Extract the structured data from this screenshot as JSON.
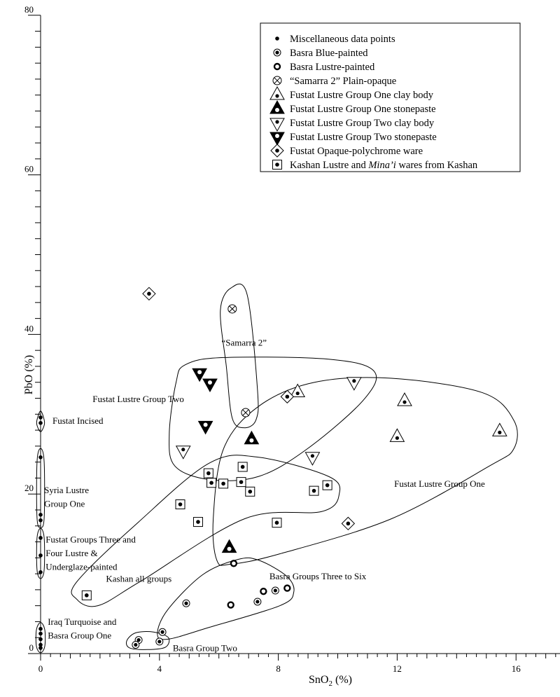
{
  "chart_data": {
    "type": "scatter",
    "title": "",
    "xlabel": "SnO2 (%)",
    "xlabel_main": "SnO",
    "xlabel_sub": "2",
    "xlabel_rest": " (%)",
    "ylabel": "PbO (%)",
    "xlim": [
      0,
      17.5
    ],
    "ylim": [
      0,
      80
    ],
    "x_ticks": [
      0,
      4,
      8,
      12,
      16
    ],
    "x_tick_labels": [
      "0",
      "4",
      "8",
      "12",
      "16"
    ],
    "y_ticks": [
      0,
      20,
      40,
      60,
      80
    ],
    "y_tick_labels": [
      "0",
      "20",
      "40",
      "60",
      "80"
    ],
    "grid": false,
    "legend_placement": "top-right",
    "colors": {
      "ink": "#000000",
      "background": "#ffffff"
    },
    "legend": [
      {
        "marker": "dot",
        "label": "Miscellaneous data points"
      },
      {
        "marker": "dotted-circle",
        "label": "Basra Blue-painted"
      },
      {
        "marker": "bold-open-circle",
        "label": "Basra Lustre-painted"
      },
      {
        "marker": "crossed-circle",
        "label": "“Samarra 2” Plain-opaque"
      },
      {
        "marker": "open-triangle-up",
        "label": "Fustat Lustre Group One clay body"
      },
      {
        "marker": "filled-triangle-up",
        "label": "Fustat Lustre Group One stonepaste"
      },
      {
        "marker": "open-triangle-down",
        "label": "Fustat Lustre Group Two clay body"
      },
      {
        "marker": "filled-triangle-down",
        "label": "Fustat Lustre Group Two stonepaste"
      },
      {
        "marker": "diamond",
        "label": "Fustat Opaque-polychrome ware"
      },
      {
        "marker": "square",
        "label": "Kashan Lustre and Mina’i wares from Kashan",
        "label_parts": [
          "Kashan Lustre and ",
          "Mina’i",
          " wares from Kashan"
        ]
      }
    ],
    "series": [
      {
        "name": "Miscellaneous data points",
        "marker": "dot",
        "points": [
          [
            0,
            29.6
          ],
          [
            0,
            28.9
          ],
          [
            0,
            24.6
          ],
          [
            0,
            17.4
          ],
          [
            0,
            16.7
          ],
          [
            0,
            14.5
          ],
          [
            0,
            12.3
          ],
          [
            0,
            10.2
          ],
          [
            0,
            3.1
          ],
          [
            0,
            2.5
          ],
          [
            0,
            1.8
          ],
          [
            0,
            1.1
          ],
          [
            0,
            0.7
          ]
        ]
      },
      {
        "name": "Basra Blue-painted",
        "marker": "dotted-circle",
        "points": [
          [
            4.9,
            6.3
          ],
          [
            7.3,
            6.5
          ],
          [
            7.9,
            7.9
          ],
          [
            4.1,
            2.7
          ],
          [
            3.3,
            1.7
          ],
          [
            3.2,
            1.1
          ],
          [
            4.0,
            1.5
          ]
        ]
      },
      {
        "name": "Basra Lustre-painted",
        "marker": "bold-open-circle",
        "points": [
          [
            6.4,
            6.1
          ],
          [
            7.5,
            7.8
          ],
          [
            8.3,
            8.2
          ],
          [
            6.5,
            11.3
          ]
        ]
      },
      {
        "name": "“Samarra 2” Plain-opaque",
        "marker": "crossed-circle",
        "points": [
          [
            6.45,
            43.2
          ],
          [
            6.9,
            30.2
          ]
        ]
      },
      {
        "name": "Fustat Lustre Group One clay body",
        "marker": "open-triangle-up",
        "points": [
          [
            8.65,
            32.7
          ],
          [
            12.25,
            31.6
          ],
          [
            12.0,
            27.1
          ],
          [
            15.45,
            27.8
          ]
        ]
      },
      {
        "name": "Fustat Lustre Group One stonepaste",
        "marker": "filled-triangle-up",
        "points": [
          [
            7.1,
            26.8
          ],
          [
            6.35,
            13.2
          ]
        ]
      },
      {
        "name": "Fustat Lustre Group Two clay body",
        "marker": "open-triangle-down",
        "points": [
          [
            10.55,
            34.0
          ],
          [
            4.8,
            25.4
          ],
          [
            9.15,
            24.6
          ]
        ]
      },
      {
        "name": "Fustat Lustre Group Two stonepaste",
        "marker": "filled-triangle-down",
        "points": [
          [
            5.35,
            35.1
          ],
          [
            5.7,
            33.8
          ],
          [
            5.55,
            28.5
          ]
        ]
      },
      {
        "name": "Fustat Opaque-polychrome ware",
        "marker": "diamond",
        "points": [
          [
            3.65,
            45.1
          ],
          [
            8.3,
            32.2
          ],
          [
            10.35,
            16.3
          ]
        ]
      },
      {
        "name": "Kashan Lustre and Mina’i wares from Kashan",
        "marker": "square",
        "points": [
          [
            5.65,
            22.6
          ],
          [
            6.8,
            23.4
          ],
          [
            5.75,
            21.4
          ],
          [
            6.15,
            21.3
          ],
          [
            6.75,
            21.5
          ],
          [
            7.05,
            20.3
          ],
          [
            4.7,
            18.7
          ],
          [
            5.3,
            16.5
          ],
          [
            7.95,
            16.4
          ],
          [
            9.2,
            20.4
          ],
          [
            9.65,
            21.1
          ],
          [
            1.55,
            7.3
          ]
        ]
      }
    ],
    "annotations": [
      {
        "text": "“Samarra 2”",
        "x": 6.85,
        "y": 38.6,
        "anchor": "middle"
      },
      {
        "text": "Fustat Lustre Group Two",
        "x": 1.75,
        "y": 31.5,
        "anchor": "start"
      },
      {
        "text": "Fustat Incised",
        "x": 0.4,
        "y": 28.8,
        "anchor": "start"
      },
      {
        "text": "Syria Lustre",
        "x": 0.12,
        "y": 20.1,
        "anchor": "start"
      },
      {
        "text": "Group One",
        "x": 0.12,
        "y": 18.4,
        "anchor": "start"
      },
      {
        "text": "Fustat Groups Three and",
        "x": 0.17,
        "y": 13.9,
        "anchor": "start"
      },
      {
        "text": "Four Lustre &",
        "x": 0.17,
        "y": 12.2,
        "anchor": "start"
      },
      {
        "text": "Underglaze-painted",
        "x": 0.17,
        "y": 10.5,
        "anchor": "start"
      },
      {
        "text": "Kashan all groups",
        "x": 2.2,
        "y": 9.0,
        "anchor": "start"
      },
      {
        "text": "Iraq Turquoise and",
        "x": 0.24,
        "y": 3.6,
        "anchor": "start"
      },
      {
        "text": "Basra Group One",
        "x": 0.24,
        "y": 1.9,
        "anchor": "start"
      },
      {
        "text": "Basra Group Two",
        "x": 4.45,
        "y": 0.3,
        "anchor": "start"
      },
      {
        "text": "Basra Groups Three to Six",
        "x": 7.7,
        "y": 9.3,
        "anchor": "start"
      },
      {
        "text": "Fustat Lustre Group One",
        "x": 11.9,
        "y": 20.9,
        "anchor": "start"
      }
    ],
    "enclosures": [
      {
        "group": "“Samarra 2”",
        "points": [
          [
            6.05,
            43
          ],
          [
            6.4,
            45.8
          ],
          [
            6.95,
            45
          ],
          [
            7.3,
            33
          ],
          [
            7.25,
            29.3
          ],
          [
            6.85,
            28.3
          ],
          [
            6.45,
            29.5
          ],
          [
            6.25,
            36
          ]
        ]
      },
      {
        "group": "Fustat Lustre Group Two",
        "points": [
          [
            4.87,
            36.2
          ],
          [
            6.16,
            37.1
          ],
          [
            9.69,
            36.9
          ],
          [
            11.22,
            35.4
          ],
          [
            10.87,
            31.8
          ],
          [
            8.99,
            25.7
          ],
          [
            7.34,
            22.2
          ],
          [
            5.69,
            21.8
          ],
          [
            4.52,
            23.5
          ],
          [
            4.33,
            27.5
          ],
          [
            4.56,
            34.0
          ]
        ]
      },
      {
        "group": "Fustat Lustre Group One",
        "points": [
          [
            5.93,
            11.7
          ],
          [
            5.81,
            16.9
          ],
          [
            6.16,
            25.7
          ],
          [
            7.34,
            31.0
          ],
          [
            9.22,
            34.0
          ],
          [
            11.81,
            34.5
          ],
          [
            14.87,
            32.7
          ],
          [
            15.93,
            29.2
          ],
          [
            15.93,
            25.7
          ],
          [
            15.1,
            23.5
          ],
          [
            11.81,
            16.9
          ],
          [
            8.05,
            12.5
          ],
          [
            6.4,
            11.2
          ]
        ]
      },
      {
        "group": "Kashan all groups",
        "points": [
          [
            5.69,
            23.9
          ],
          [
            7.34,
            24.6
          ],
          [
            9.69,
            22.2
          ],
          [
            10.05,
            20.0
          ],
          [
            9.46,
            17.8
          ],
          [
            6.87,
            16.9
          ],
          [
            3.34,
            9.0
          ],
          [
            1.93,
            6.0
          ],
          [
            1.22,
            6.8
          ],
          [
            1.22,
            9.0
          ],
          [
            3.3,
            16.5
          ]
        ]
      },
      {
        "group": "Basra Groups Three to Six",
        "points": [
          [
            3.93,
            2.5
          ],
          [
            4.28,
            5.5
          ],
          [
            5.46,
            9.9
          ],
          [
            6.64,
            11.8
          ],
          [
            7.34,
            11.7
          ],
          [
            8.28,
            9.7
          ],
          [
            8.52,
            7.7
          ],
          [
            8.05,
            6.0
          ],
          [
            5.69,
            3.3
          ],
          [
            4.28,
            1.8
          ]
        ]
      },
      {
        "group": "Basra Group Two",
        "points": [
          [
            2.9,
            1.6
          ],
          [
            3.2,
            2.6
          ],
          [
            3.8,
            2.7
          ],
          [
            4.3,
            2.0
          ],
          [
            4.2,
            0.8
          ],
          [
            3.6,
            0.5
          ],
          [
            3.0,
            0.7
          ]
        ]
      },
      {
        "group": "Fustat Incised",
        "points": [
          [
            -0.12,
            29.3
          ],
          [
            0,
            30.4
          ],
          [
            0.12,
            29.3
          ],
          [
            0.12,
            28.6
          ],
          [
            0,
            27.8
          ],
          [
            -0.12,
            28.6
          ]
        ]
      },
      {
        "group": "Syria Lustre Group One",
        "points": [
          [
            -0.12,
            24
          ],
          [
            0,
            25.7
          ],
          [
            0.12,
            24
          ],
          [
            0.12,
            17
          ],
          [
            0,
            15.8
          ],
          [
            -0.12,
            17
          ]
        ]
      },
      {
        "group": "Fustat Groups Three and Four Lustre & Underglaze-painted",
        "points": [
          [
            -0.12,
            14.5
          ],
          [
            0,
            15.7
          ],
          [
            0.12,
            14.5
          ],
          [
            0.12,
            10.5
          ],
          [
            0,
            9.4
          ],
          [
            -0.12,
            10.5
          ]
        ]
      },
      {
        "group": "Iraq Turquoise and Basra Group One",
        "points": [
          [
            -0.14,
            3
          ],
          [
            0,
            3.9
          ],
          [
            0.14,
            3
          ],
          [
            0.14,
            0.9
          ],
          [
            0,
            0.1
          ],
          [
            -0.14,
            0.9
          ]
        ]
      }
    ]
  }
}
